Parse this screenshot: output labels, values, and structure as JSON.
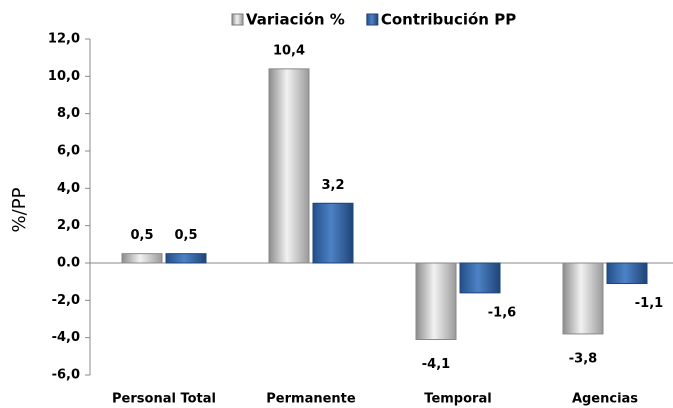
{
  "chart_data": {
    "type": "bar",
    "y_label": "%/PP",
    "categories": [
      "Personal Total",
      "Permanente",
      "Temporal",
      "Agencias"
    ],
    "series": [
      {
        "name": "Variación %",
        "color": "#bfbfbf",
        "values": [
          0.5,
          10.4,
          -4.1,
          -3.8
        ],
        "value_labels": [
          "0,5",
          "10,4",
          "-4,1",
          "-3,8"
        ]
      },
      {
        "name": "Contribución PP",
        "color": "#3a6db0",
        "values": [
          0.5,
          3.2,
          -1.6,
          -1.1
        ],
        "value_labels": [
          "0,5",
          "3,2",
          "-1,6",
          "-1,1"
        ]
      }
    ],
    "ylim": [
      -6,
      12
    ],
    "yticks": [
      {
        "value": -6,
        "label": "-6,0"
      },
      {
        "value": -4,
        "label": "-4,0"
      },
      {
        "value": -2,
        "label": "-2,0"
      },
      {
        "value": 0,
        "label": "0.0"
      },
      {
        "value": 2,
        "label": "2,0"
      },
      {
        "value": 4,
        "label": "4,0"
      },
      {
        "value": 6,
        "label": "6,0"
      },
      {
        "value": 8,
        "label": "8,0"
      },
      {
        "value": 10,
        "label": "10,0"
      },
      {
        "value": 12,
        "label": "12,0"
      }
    ],
    "legend": "top"
  }
}
